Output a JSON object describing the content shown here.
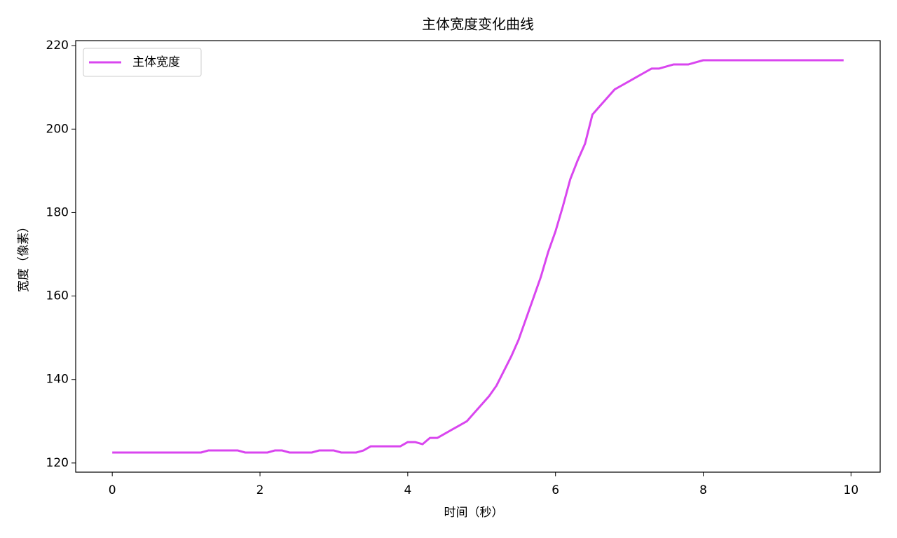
{
  "chart_data": {
    "type": "line",
    "title": "主体宽度变化曲线",
    "x_label": "时间（秒）",
    "y_label": "宽度（像素）",
    "x": [
      0,
      0.1,
      0.2,
      0.3,
      0.4,
      0.5,
      0.6,
      0.7,
      0.8,
      0.9,
      1.0,
      1.1,
      1.2,
      1.3,
      1.4,
      1.5,
      1.6,
      1.7,
      1.8,
      1.9,
      2.0,
      2.1,
      2.2,
      2.3,
      2.4,
      2.5,
      2.6,
      2.7,
      2.8,
      2.9,
      3.0,
      3.1,
      3.2,
      3.3,
      3.4,
      3.5,
      3.6,
      3.7,
      3.8,
      3.9,
      4.0,
      4.1,
      4.2,
      4.3,
      4.4,
      4.5,
      4.6,
      4.7,
      4.8,
      4.9,
      5.0,
      5.1,
      5.2,
      5.3,
      5.4,
      5.5,
      5.6,
      5.7,
      5.8,
      5.9,
      6.0,
      6.1,
      6.2,
      6.3,
      6.4,
      6.5,
      6.6,
      6.7,
      6.8,
      6.9,
      7.0,
      7.1,
      7.2,
      7.3,
      7.4,
      7.5,
      7.6,
      7.7,
      7.8,
      7.9,
      8.0,
      8.1,
      8.2,
      8.3,
      8.4,
      8.5,
      8.6,
      8.7,
      8.8,
      8.9,
      9.0,
      9.1,
      9.2,
      9.3,
      9.4,
      9.5,
      9.6,
      9.7,
      9.8,
      9.9
    ],
    "series": [
      {
        "name": "主体宽度",
        "color": "#d946ef",
        "values": [
          122.5,
          122.5,
          122.5,
          122.5,
          122.5,
          122.5,
          122.5,
          122.5,
          122.5,
          122.5,
          122.5,
          122.5,
          122.5,
          123,
          123,
          123,
          123,
          123,
          122.5,
          122.5,
          122.5,
          122.5,
          123,
          123,
          122.5,
          122.5,
          122.5,
          122.5,
          123,
          123,
          123,
          122.5,
          122.5,
          122.5,
          123,
          124,
          124,
          124,
          124,
          124,
          125,
          125,
          124.5,
          126,
          126,
          127,
          128,
          129,
          130,
          132,
          134,
          136,
          138.5,
          142,
          145.5,
          149.5,
          154.5,
          159.5,
          164.5,
          170.5,
          175.5,
          181.5,
          188,
          192.5,
          196.5,
          203.5,
          205.5,
          207.5,
          209.5,
          210.5,
          211.5,
          212.5,
          213.5,
          214.5,
          214.5,
          215,
          215.5,
          215.5,
          215.5,
          216,
          216.5,
          216.5,
          216.5,
          216.5,
          216.5,
          216.5,
          216.5,
          216.5,
          216.5,
          216.5,
          216.5,
          216.5,
          216.5,
          216.5,
          216.5,
          216.5,
          216.5,
          216.5,
          216.5,
          216.5
        ]
      }
    ],
    "xlim": [
      -0.495,
      10.395
    ],
    "ylim": [
      117.8,
      221.2
    ],
    "xticks": [
      0,
      2,
      4,
      6,
      8,
      10
    ],
    "yticks": [
      120,
      140,
      160,
      180,
      200,
      220
    ],
    "legend": "upper left"
  }
}
